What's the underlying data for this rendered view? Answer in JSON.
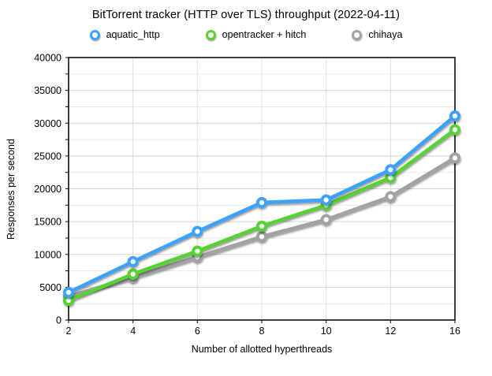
{
  "chart_data": {
    "type": "line",
    "title": "BitTorrent tracker (HTTP over TLS) throughput (2022-04-11)",
    "xlabel": "Number of allotted hyperthreads",
    "ylabel": "Responses per second",
    "categories": [
      2,
      4,
      6,
      8,
      10,
      12,
      16
    ],
    "series": [
      {
        "name": "aquatic_http",
        "color": "#3EA2FC",
        "values": [
          4200,
          8900,
          13500,
          17900,
          18300,
          22900,
          31100
        ]
      },
      {
        "name": "opentracker + hitch",
        "color": "#57D231",
        "values": [
          3000,
          7000,
          10500,
          14300,
          17500,
          21700,
          29000
        ]
      },
      {
        "name": "chihaya",
        "color": "#A2A2A2",
        "values": [
          3600,
          6500,
          9600,
          12700,
          15300,
          18800,
          24700
        ]
      }
    ],
    "ylim": [
      0,
      40000
    ],
    "y_major_step": 5000,
    "y_minor_step": 2500,
    "x_tick_labels": [
      "2",
      "4",
      "6",
      "8",
      "10",
      "12",
      "16"
    ],
    "y_tick_labels": [
      "0",
      "5000",
      "10000",
      "15000",
      "20000",
      "25000",
      "30000",
      "35000",
      "40000"
    ],
    "grid": true,
    "legend_position": "top",
    "marker": "open-circle"
  },
  "palette": {
    "background": "#ffffff",
    "plot_border": "#1c1c1c",
    "grid_major": "#d2d2d2",
    "grid_minor": "#e9e9e9",
    "grid_vertical": "#dcdcdc",
    "text": "#000000"
  }
}
